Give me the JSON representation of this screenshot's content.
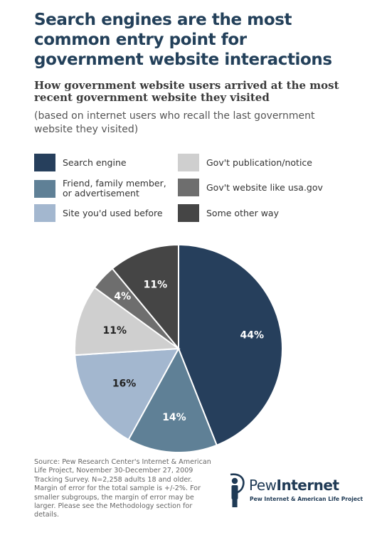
{
  "header": {
    "title": "Search engines are the most common entry point for government website interactions",
    "subtitle": "How government website users arrived at the most recent government website they visited",
    "note": "(based on internet users who recall the last government website they visited)"
  },
  "chart_data": {
    "type": "pie",
    "title": "",
    "categories": [
      "Search engine",
      "Friend, family member, or advertisement",
      "Site you'd used before",
      "Gov't publication/notice",
      "Gov't website like usa.gov",
      "Some other way"
    ],
    "values": [
      44,
      14,
      16,
      11,
      4,
      11
    ],
    "value_labels": [
      "44%",
      "14%",
      "16%",
      "11%",
      "4%",
      "11%"
    ],
    "colors": [
      "#263f5c",
      "#5f8096",
      "#a3b7cf",
      "#cfcfcf",
      "#6e6e6e",
      "#454545"
    ],
    "label_colors": [
      "#ffffff",
      "#ffffff",
      "#222222",
      "#222222",
      "#ffffff",
      "#ffffff"
    ],
    "start": "12 o'clock, clockwise",
    "legend_position": "top"
  },
  "legend": {
    "items": [
      {
        "label": "Search engine",
        "color": "#263f5c"
      },
      {
        "label": "Friend, family member, or advertisement",
        "color": "#5f8096"
      },
      {
        "label": "Site you'd used before",
        "color": "#a3b7cf"
      },
      {
        "label": "Gov't publication/notice",
        "color": "#cfcfcf"
      },
      {
        "label": "Gov't website like usa.gov",
        "color": "#6e6e6e"
      },
      {
        "label": "Some other way",
        "color": "#454545"
      }
    ]
  },
  "footer": {
    "source": "Source: Pew Research Center's Internet & American Life Project, November 30-December 27, 2009 Tracking Survey. N=2,258 adults 18 and older. Margin of error for the total sample is +/-2%. For smaller subgroups, the margin of error may be larger. Please see the Methodology section for details.",
    "logo_word1": "Pew",
    "logo_word2": "Internet",
    "logo_tagline": "Pew Internet & American Life Project",
    "logo_icon": "pew-figure-icon"
  }
}
